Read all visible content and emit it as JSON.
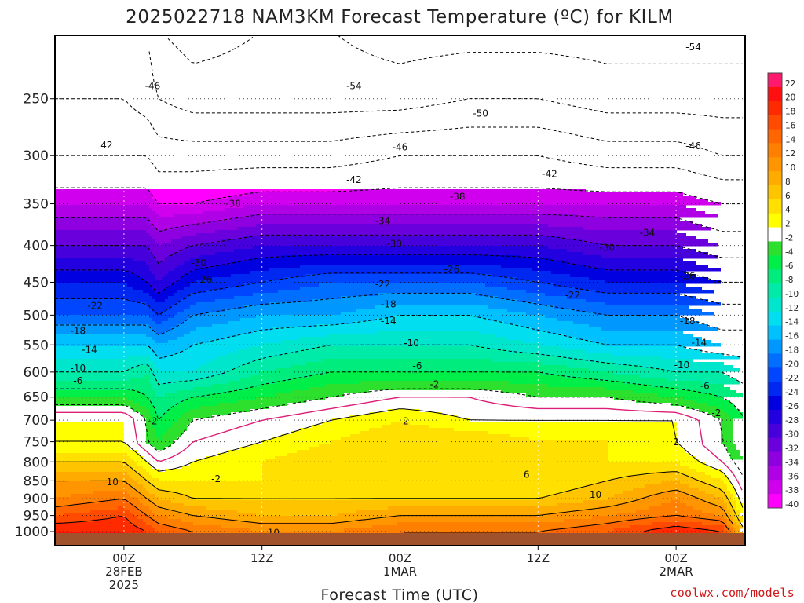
{
  "chart_data": {
    "type": "heatmap",
    "title": "2025022718 NAM3KM Forecast Temperature (ºC) for KILM",
    "xlabel": "Forecast Time (UTC)",
    "ylabel": "",
    "credit": "coolwx.com/models",
    "colors": {
      "ground": "#a0522d",
      "freezing_line": "#dc1e78",
      "frame": "#000000"
    },
    "y_axis": {
      "scale": "log",
      "inverted": true,
      "range": [
        1020,
        200
      ],
      "ticks": [
        {
          "value": 250,
          "label": "250"
        },
        {
          "value": 300,
          "label": "300"
        },
        {
          "value": 350,
          "label": "350"
        },
        {
          "value": 400,
          "label": "400"
        },
        {
          "value": 450,
          "label": "450"
        },
        {
          "value": 500,
          "label": "500"
        },
        {
          "value": 550,
          "label": "550"
        },
        {
          "value": 600,
          "label": "600"
        },
        {
          "value": 650,
          "label": "650"
        },
        {
          "value": 700,
          "label": "700"
        },
        {
          "value": 750,
          "label": "750"
        },
        {
          "value": 800,
          "label": "800"
        },
        {
          "value": 850,
          "label": "850"
        },
        {
          "value": 900,
          "label": "900"
        },
        {
          "value": 950,
          "label": "950"
        },
        {
          "value": 1000,
          "label": "1000"
        }
      ]
    },
    "x_axis": {
      "unit": "forecast hour",
      "range": [
        0,
        60
      ],
      "ticks": [
        {
          "value": 6,
          "lines": [
            "00Z",
            "28FEB",
            "2025"
          ]
        },
        {
          "value": 18,
          "lines": [
            "12Z"
          ]
        },
        {
          "value": 30,
          "lines": [
            "00Z",
            "1MAR"
          ]
        },
        {
          "value": 42,
          "lines": [
            "12Z"
          ]
        },
        {
          "value": 54,
          "lines": [
            "00Z",
            "2MAR"
          ]
        }
      ]
    },
    "colorbar": {
      "levels": [
        {
          "label": "22",
          "color": "#ff1a6e"
        },
        {
          "label": "20",
          "color": "#ff1010"
        },
        {
          "label": "18",
          "color": "#ff2a00"
        },
        {
          "label": "16",
          "color": "#ff4a00"
        },
        {
          "label": "14",
          "color": "#ff6600"
        },
        {
          "label": "12",
          "color": "#ff8000"
        },
        {
          "label": "10",
          "color": "#ff9500"
        },
        {
          "label": "8",
          "color": "#ffab00"
        },
        {
          "label": "6",
          "color": "#ffc400"
        },
        {
          "label": "4",
          "color": "#ffe000"
        },
        {
          "label": "2",
          "color": "#ffff00"
        },
        {
          "label": "-2",
          "color": "#ffffff"
        },
        {
          "label": "-4",
          "color": "#2de02d"
        },
        {
          "label": "-6",
          "color": "#00ee48"
        },
        {
          "label": "-8",
          "color": "#00ec7d"
        },
        {
          "label": "-10",
          "color": "#00eaa8"
        },
        {
          "label": "-12",
          "color": "#00e6cc"
        },
        {
          "label": "-14",
          "color": "#00deef"
        },
        {
          "label": "-16",
          "color": "#00c0ff"
        },
        {
          "label": "-18",
          "color": "#0098ff"
        },
        {
          "label": "-20",
          "color": "#006eff"
        },
        {
          "label": "-22",
          "color": "#0046ff"
        },
        {
          "label": "-24",
          "color": "#0028f0"
        },
        {
          "label": "-26",
          "color": "#0000e0"
        },
        {
          "label": "-28",
          "color": "#2200e0"
        },
        {
          "label": "-30",
          "color": "#4600dc"
        },
        {
          "label": "-32",
          "color": "#6a00dc"
        },
        {
          "label": "-34",
          "color": "#8e00e0"
        },
        {
          "label": "-36",
          "color": "#b000e6"
        },
        {
          "label": "-38",
          "color": "#d000ee"
        },
        {
          "label": "-40",
          "color": "#ff00ff"
        }
      ]
    },
    "temperature_grid": {
      "x_hours": [
        0,
        6,
        8,
        9,
        12,
        18,
        24,
        30,
        36,
        42,
        48,
        54,
        58,
        60
      ],
      "levels_hpa": [
        1000,
        950,
        900,
        850,
        800,
        750,
        700,
        650,
        600,
        550,
        500,
        450,
        400,
        350,
        300,
        250,
        200
      ],
      "values": [
        [
          20,
          20,
          18,
          16,
          14,
          12,
          12,
          14,
          14,
          14,
          16,
          20,
          18,
          6
        ],
        [
          16,
          18,
          14,
          12,
          10,
          8,
          8,
          10,
          10,
          10,
          12,
          14,
          12,
          2
        ],
        [
          12,
          14,
          10,
          8,
          6,
          6,
          6,
          6,
          6,
          6,
          8,
          12,
          8,
          0
        ],
        [
          10,
          10,
          6,
          4,
          4,
          4,
          4,
          4,
          4,
          4,
          6,
          8,
          4,
          -2
        ],
        [
          6,
          6,
          2,
          0,
          2,
          4,
          6,
          6,
          4,
          4,
          4,
          4,
          0,
          -4
        ],
        [
          2,
          2,
          -2,
          -4,
          0,
          2,
          4,
          6,
          6,
          4,
          4,
          2,
          -2,
          -6
        ],
        [
          2,
          2,
          -2,
          -6,
          -2,
          0,
          2,
          4,
          2,
          2,
          2,
          2,
          -2,
          -6
        ],
        [
          -4,
          -4,
          -6,
          -8,
          -6,
          -4,
          -2,
          0,
          0,
          -2,
          -2,
          -4,
          -6,
          -8
        ],
        [
          -10,
          -10,
          -8,
          -12,
          -12,
          -8,
          -6,
          -6,
          -6,
          -6,
          -8,
          -10,
          -10,
          -12
        ],
        [
          -14,
          -14,
          -14,
          -16,
          -14,
          -12,
          -10,
          -10,
          -10,
          -12,
          -14,
          -14,
          -16,
          -16
        ],
        [
          -20,
          -20,
          -20,
          -22,
          -18,
          -16,
          -16,
          -14,
          -14,
          -16,
          -18,
          -18,
          -20,
          -20
        ],
        [
          -24,
          -24,
          -26,
          -28,
          -24,
          -22,
          -20,
          -20,
          -20,
          -22,
          -24,
          -24,
          -26,
          -26
        ],
        [
          -30,
          -30,
          -30,
          -32,
          -30,
          -28,
          -28,
          -28,
          -28,
          -28,
          -30,
          -30,
          -32,
          -32
        ],
        [
          -36,
          -36,
          -36,
          -38,
          -38,
          -36,
          -36,
          -36,
          -36,
          -36,
          -36,
          -36,
          -38,
          -38
        ],
        [
          -42,
          -42,
          -42,
          -44,
          -44,
          -44,
          -44,
          -42,
          -42,
          -42,
          -44,
          -44,
          -46,
          -46
        ],
        [
          -46,
          -46,
          -48,
          -50,
          -52,
          -52,
          -52,
          -52,
          -50,
          -50,
          -52,
          -52,
          -52,
          -52
        ],
        [
          -50,
          -50,
          -50,
          -54,
          -56,
          -54,
          -54,
          -56,
          -56,
          -56,
          -56,
          -56,
          -56,
          -56
        ]
      ]
    },
    "contour_labels": [
      {
        "text": "-46",
        "x": 8.5,
        "p": 240
      },
      {
        "text": "-54",
        "x": 26,
        "p": 240
      },
      {
        "text": "-54",
        "x": 55.5,
        "p": 212
      },
      {
        "text": "-50",
        "x": 37,
        "p": 262
      },
      {
        "text": "42",
        "x": 4.5,
        "p": 290
      },
      {
        "text": "-46",
        "x": 30,
        "p": 292
      },
      {
        "text": "-46",
        "x": 55.5,
        "p": 291
      },
      {
        "text": "-42",
        "x": 26,
        "p": 324
      },
      {
        "text": "-42",
        "x": 43,
        "p": 318
      },
      {
        "text": "-38",
        "x": 15.5,
        "p": 350
      },
      {
        "text": "-38",
        "x": 35,
        "p": 342
      },
      {
        "text": "-34",
        "x": 28.5,
        "p": 370
      },
      {
        "text": "-34",
        "x": 51.5,
        "p": 384
      },
      {
        "text": "-30",
        "x": 29.5,
        "p": 398
      },
      {
        "text": "-30",
        "x": 48,
        "p": 403
      },
      {
        "text": "-30",
        "x": 12.5,
        "p": 423
      },
      {
        "text": "-26",
        "x": 13,
        "p": 446
      },
      {
        "text": "-26",
        "x": 34.5,
        "p": 432
      },
      {
        "text": "-26",
        "x": 55,
        "p": 441
      },
      {
        "text": "-22",
        "x": 3.5,
        "p": 485
      },
      {
        "text": "-22",
        "x": 28.5,
        "p": 453
      },
      {
        "text": "-22",
        "x": 45,
        "p": 469
      },
      {
        "text": "-18",
        "x": 29,
        "p": 483
      },
      {
        "text": "-18",
        "x": 55,
        "p": 510
      },
      {
        "text": "-18",
        "x": 2,
        "p": 526
      },
      {
        "text": "-14",
        "x": 29,
        "p": 510
      },
      {
        "text": "-14",
        "x": 56,
        "p": 546
      },
      {
        "text": "-14",
        "x": 3,
        "p": 559
      },
      {
        "text": "-10",
        "x": 31,
        "p": 547
      },
      {
        "text": "-10",
        "x": 54.5,
        "p": 587
      },
      {
        "text": "-10",
        "x": 2,
        "p": 593
      },
      {
        "text": "-6",
        "x": 31.5,
        "p": 588
      },
      {
        "text": "-6",
        "x": 56.5,
        "p": 627
      },
      {
        "text": "-6",
        "x": 2,
        "p": 617
      },
      {
        "text": "-2",
        "x": 33,
        "p": 624
      },
      {
        "text": "-2",
        "x": 57.5,
        "p": 684
      },
      {
        "text": "-2",
        "x": 8.5,
        "p": 702
      },
      {
        "text": "2",
        "x": 30.5,
        "p": 702
      },
      {
        "text": "2",
        "x": 54,
        "p": 751
      },
      {
        "text": "-2",
        "x": 14,
        "p": 845
      },
      {
        "text": "10",
        "x": 5,
        "p": 853
      },
      {
        "text": "6",
        "x": 41,
        "p": 833
      },
      {
        "text": "10",
        "x": 47,
        "p": 888
      },
      {
        "text": "10",
        "x": 19,
        "p": 1004
      }
    ]
  }
}
